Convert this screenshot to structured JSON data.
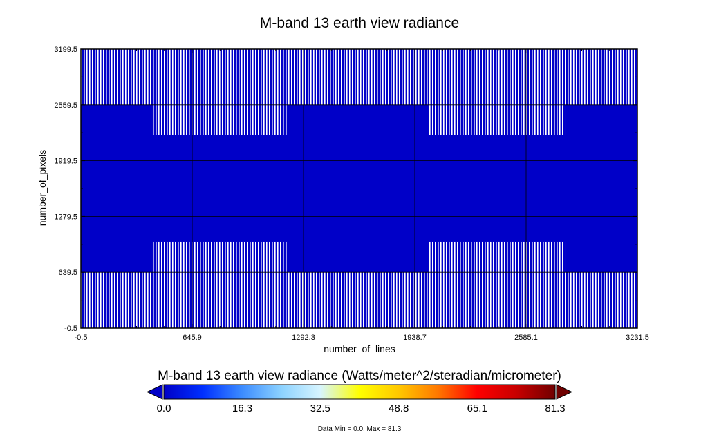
{
  "chart_data": {
    "type": "heatmap",
    "title": "M-band 13 earth view radiance",
    "xlabel": "number_of_lines",
    "ylabel": "number_of_pixels",
    "xlim": [
      -0.5,
      3231.5
    ],
    "ylim": [
      -0.5,
      3199.5
    ],
    "xticks": [
      "-0.5",
      "645.9",
      "1292.3",
      "1938.7",
      "2585.1",
      "3231.5"
    ],
    "yticks": [
      "-0.5",
      "639.5",
      "1279.5",
      "1919.5",
      "2559.5",
      "3199.5"
    ],
    "grid": true,
    "field_value_approx": 0.0,
    "striped_regions_note": "vertical fill-value stripes",
    "stripe_regions": [
      {
        "x": [
          -0.5,
          3231.5
        ],
        "y": [
          2559.5,
          3199.5
        ]
      },
      {
        "x": [
          -0.5,
          3231.5
        ],
        "y": [
          -0.5,
          639.5
        ]
      },
      {
        "x": [
          405,
          1200
        ],
        "y": [
          2210,
          2559.5
        ]
      },
      {
        "x": [
          2015,
          2810
        ],
        "y": [
          2210,
          2559.5
        ]
      },
      {
        "x": [
          405,
          1200
        ],
        "y": [
          639.5,
          990
        ]
      },
      {
        "x": [
          2015,
          2810
        ],
        "y": [
          639.5,
          990
        ]
      }
    ],
    "colorbar": {
      "title": "M-band 13 earth view radiance (Watts/meter^2/steradian/micrometer)",
      "min": 0.0,
      "max": 81.3,
      "ticks": [
        "0.0",
        "16.3",
        "32.5",
        "48.8",
        "65.1",
        "81.3"
      ],
      "colors": [
        "#0000c8",
        "#0030ff",
        "#3c8cff",
        "#8cd2ff",
        "#d7f5ff",
        "#ffff00",
        "#ffc800",
        "#ff7800",
        "#ff0000",
        "#c80000",
        "#700000"
      ],
      "under_color": "#0000c8",
      "over_color": "#700000"
    },
    "footer": "Data Min = 0.0, Max = 81.3"
  }
}
